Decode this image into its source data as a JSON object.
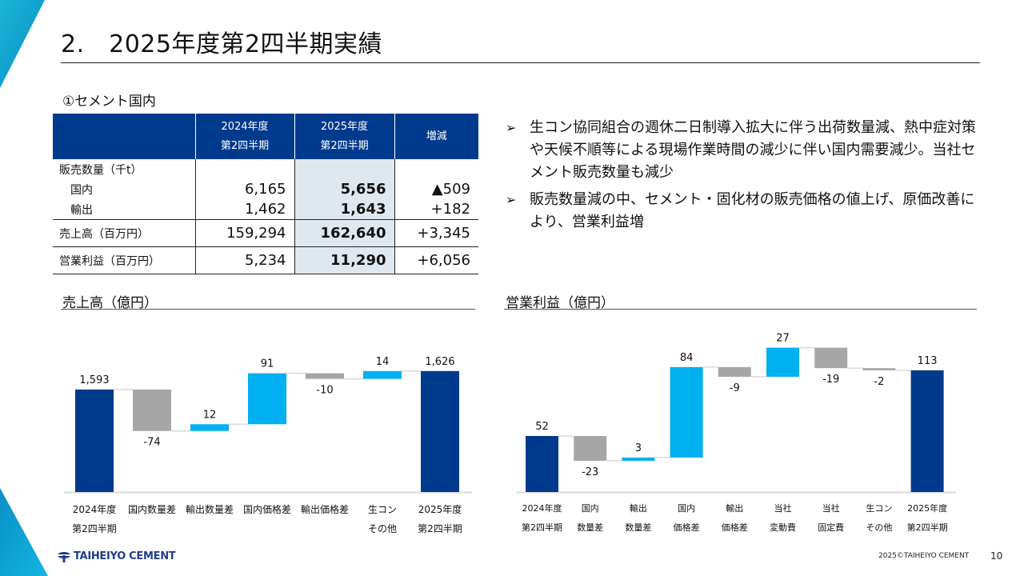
{
  "title": "2.　2025年度第2四半期実績",
  "section_label": "①セメント国内",
  "table": {
    "headers": [
      "",
      "2024年度\n第2四半期",
      "2025年度\n第2四半期",
      "増減"
    ],
    "header_lines": [
      [
        "",
        ""
      ],
      [
        "2024年度",
        "第2四半期"
      ],
      [
        "2025年度",
        "第2四半期"
      ],
      [
        "増減",
        ""
      ]
    ],
    "rows": [
      {
        "label": "販売数量（千t）",
        "indent": false,
        "v2024": "",
        "v2025": "",
        "diff": ""
      },
      {
        "label": "国内",
        "indent": true,
        "v2024": "6,165",
        "v2025": "5,656",
        "diff": "▲509"
      },
      {
        "label": "輸出",
        "indent": true,
        "v2024": "1,462",
        "v2025": "1,643",
        "diff": "+182"
      },
      {
        "label": "売上高（百万円）",
        "indent": false,
        "v2024": "159,294",
        "v2025": "162,640",
        "diff": "+3,345"
      },
      {
        "label": "営業利益（百万円）",
        "indent": false,
        "v2024": "5,234",
        "v2025": "11,290",
        "diff": "+6,056"
      }
    ]
  },
  "bullets": [
    {
      "marker": "➢",
      "text": "生コン協同組合の週休二日制導入拡大に伴う出荷数量減、熱中症対策や天候不順等による現場作業時間の減少に伴い国内需要減少。当社セメント販売数量も減少"
    },
    {
      "marker": "➢",
      "text": "販売数量減の中、セメント・固化材の販売価格の値上げ、原価改善により、営業利益増"
    }
  ],
  "colors": {
    "total": "#003a8c",
    "increase": "#00b0f0",
    "decrease": "#a6a6a6",
    "header_bg": "#003a8c",
    "highlight": "#dfe7ef"
  },
  "chart_data": [
    {
      "type": "bar",
      "subtype": "waterfall",
      "title": "売上高（億円）",
      "unit": "億円",
      "categories": [
        [
          "2024年度",
          "第2四半期"
        ],
        [
          "国内数量差"
        ],
        [
          "輸出数量差"
        ],
        [
          "国内価格差"
        ],
        [
          "輸出価格差"
        ],
        [
          "生コン",
          "その他"
        ],
        [
          "2025年度",
          "第2四半期"
        ]
      ],
      "values": [
        1593,
        -74,
        12,
        91,
        -10,
        14,
        1626
      ],
      "kinds": [
        "total",
        "delta",
        "delta",
        "delta",
        "delta",
        "delta",
        "total"
      ],
      "labels": [
        "1,593",
        "-74",
        "12",
        "91",
        "-10",
        "14",
        "1,626"
      ],
      "ylim": [
        1410,
        1660
      ],
      "grid": false,
      "legend": "none"
    },
    {
      "type": "bar",
      "subtype": "waterfall",
      "title": "営業利益（億円）",
      "unit": "億円",
      "categories": [
        [
          "2024年度",
          "第2四半期"
        ],
        [
          "国内",
          "数量差"
        ],
        [
          "輸出",
          "数量差"
        ],
        [
          "国内",
          "価格差"
        ],
        [
          "輸出",
          "価格差"
        ],
        [
          "当社",
          "変動費"
        ],
        [
          "当社",
          "固定費"
        ],
        [
          "生コン",
          "その他"
        ],
        [
          "2025年度",
          "第2四半期"
        ]
      ],
      "values": [
        52,
        -23,
        3,
        84,
        -9,
        27,
        -19,
        -2,
        113
      ],
      "kinds": [
        "total",
        "delta",
        "delta",
        "delta",
        "delta",
        "delta",
        "delta",
        "delta",
        "total"
      ],
      "labels": [
        "52",
        "-23",
        "3",
        "84",
        "-9",
        "27",
        "-19",
        "-2",
        "113"
      ],
      "ylim": [
        0,
        130
      ],
      "grid": false,
      "legend": "none"
    }
  ],
  "footer": {
    "brand": "TAIHEIYO CEMENT",
    "copyright": "2025©TAIHEIYO CEMENT",
    "page": "10"
  }
}
